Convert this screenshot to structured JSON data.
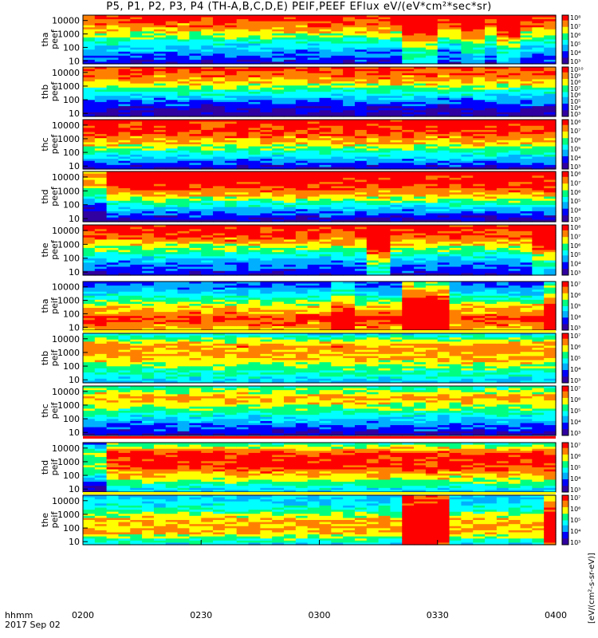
{
  "title": "P5, P1, P2, P3, P4 (TH-A,B,C,D,E) PEIF,PEEF EFlux eV/(eV*cm²*sec*sr)",
  "colorbar_unit": "[eV/(cm²-s-sr-eV)]",
  "x_axis": {
    "label_line1": "hhmm",
    "label_line2": "2017 Sep 02",
    "ticks": [
      "0200",
      "0230",
      "0300",
      "0330",
      "0400"
    ]
  },
  "colors": {
    "frame": "#000000",
    "separator_red": "#ff0000",
    "separator_yellow": "#ffff00"
  },
  "chart_data": {
    "type": "heatmap",
    "x_range_minutes": [
      0,
      120
    ],
    "y_scale": "log",
    "y_ticks": [
      "10",
      "100",
      "1000",
      "10000"
    ],
    "y_tick_values": [
      10,
      100,
      1000,
      10000
    ],
    "colormap": [
      "#3000a0",
      "#0000ff",
      "#00b0ff",
      "#00ffff",
      "#00ff80",
      "#ffff00",
      "#ff8000",
      "#ff0000"
    ],
    "panels": [
      {
        "probe": "tha",
        "species": "peef",
        "cbar_labels": [
          "10³",
          "10⁴",
          "10⁵",
          "10⁶",
          "10⁷",
          "10⁸"
        ],
        "bands": [
          0.15,
          0.3,
          0.55,
          0.8,
          0.95
        ],
        "events": [
          {
            "start": 81,
            "end": 90,
            "shift": 0.25
          },
          {
            "start": 96,
            "end": 102,
            "shift": 0.15
          },
          {
            "start": 106,
            "end": 111,
            "shift": 0.2
          }
        ]
      },
      {
        "probe": "thb",
        "species": "peef",
        "cbar_labels": [
          "10³",
          "10⁴",
          "10⁵",
          "10⁶",
          "10⁷",
          "10⁸",
          "10⁹",
          "10¹⁰"
        ],
        "bands": [
          0.05,
          0.2,
          0.5,
          0.8,
          0.9
        ],
        "events": []
      },
      {
        "probe": "thc",
        "species": "peef",
        "cbar_labels": [
          "10³",
          "10⁴",
          "10⁵",
          "10⁶",
          "10⁷",
          "10⁸"
        ],
        "bands": [
          0.1,
          0.4,
          0.7,
          0.9,
          0.95
        ],
        "events": []
      },
      {
        "probe": "thd",
        "species": "peef",
        "cbar_labels": [
          "10³",
          "10⁴",
          "10⁵",
          "10⁶",
          "10⁷",
          "10⁸"
        ],
        "bands": [
          0.05,
          0.35,
          0.7,
          0.95,
          0.95
        ],
        "events": [
          {
            "start": 0,
            "end": 5,
            "shift": -0.2
          }
        ]
      },
      {
        "probe": "the",
        "species": "peef",
        "cbar_labels": [
          "10³",
          "10⁴",
          "10⁵",
          "10⁶",
          "10⁷",
          "10⁸"
        ],
        "bands": [
          0.15,
          0.3,
          0.6,
          0.85,
          0.95
        ],
        "events": [
          {
            "start": 72,
            "end": 78,
            "shift": 0.3
          },
          {
            "start": 115,
            "end": 120,
            "shift": 0.2
          }
        ]
      },
      {
        "probe": "tha",
        "species": "peif",
        "cbar_labels": [
          "10³",
          "10⁴",
          "10⁵",
          "10⁶",
          "10⁷"
        ],
        "bands": [
          0.75,
          0.9,
          0.7,
          0.4,
          0.2
        ],
        "events": [
          {
            "start": 64,
            "end": 70,
            "shift": 0.15
          },
          {
            "start": 81,
            "end": 92,
            "shift": 0.4
          },
          {
            "start": 116,
            "end": 120,
            "shift": 0.3
          }
        ]
      },
      {
        "probe": "thb",
        "species": "peif",
        "cbar_labels": [
          "10³",
          "10⁴",
          "10⁵",
          "10⁶",
          "10⁷"
        ],
        "bands": [
          0.35,
          0.55,
          0.75,
          0.8,
          0.4
        ],
        "events": []
      },
      {
        "probe": "thc",
        "species": "peif",
        "cbar_labels": [
          "10³",
          "10⁴",
          "10⁵",
          "10⁶",
          "10⁷"
        ],
        "bands": [
          0.1,
          0.3,
          0.55,
          0.8,
          0.5
        ],
        "events": []
      },
      {
        "probe": "thd",
        "species": "peif",
        "cbar_labels": [
          "10³",
          "10⁴",
          "10⁵",
          "10⁶",
          "10⁷"
        ],
        "bands": [
          0.35,
          0.65,
          0.9,
          0.95,
          0.5
        ],
        "events": [
          {
            "start": 0,
            "end": 6,
            "shift": -0.3
          }
        ]
      },
      {
        "probe": "the",
        "species": "peif",
        "cbar_labels": [
          "10³",
          "10⁴",
          "10⁵",
          "10⁶",
          "10⁷"
        ],
        "bands": [
          0.4,
          0.75,
          0.75,
          0.45,
          0.35
        ],
        "events": [
          {
            "start": 81,
            "end": 93,
            "shift": 0.5
          },
          {
            "start": 116,
            "end": 120,
            "shift": 0.35
          }
        ]
      }
    ]
  }
}
